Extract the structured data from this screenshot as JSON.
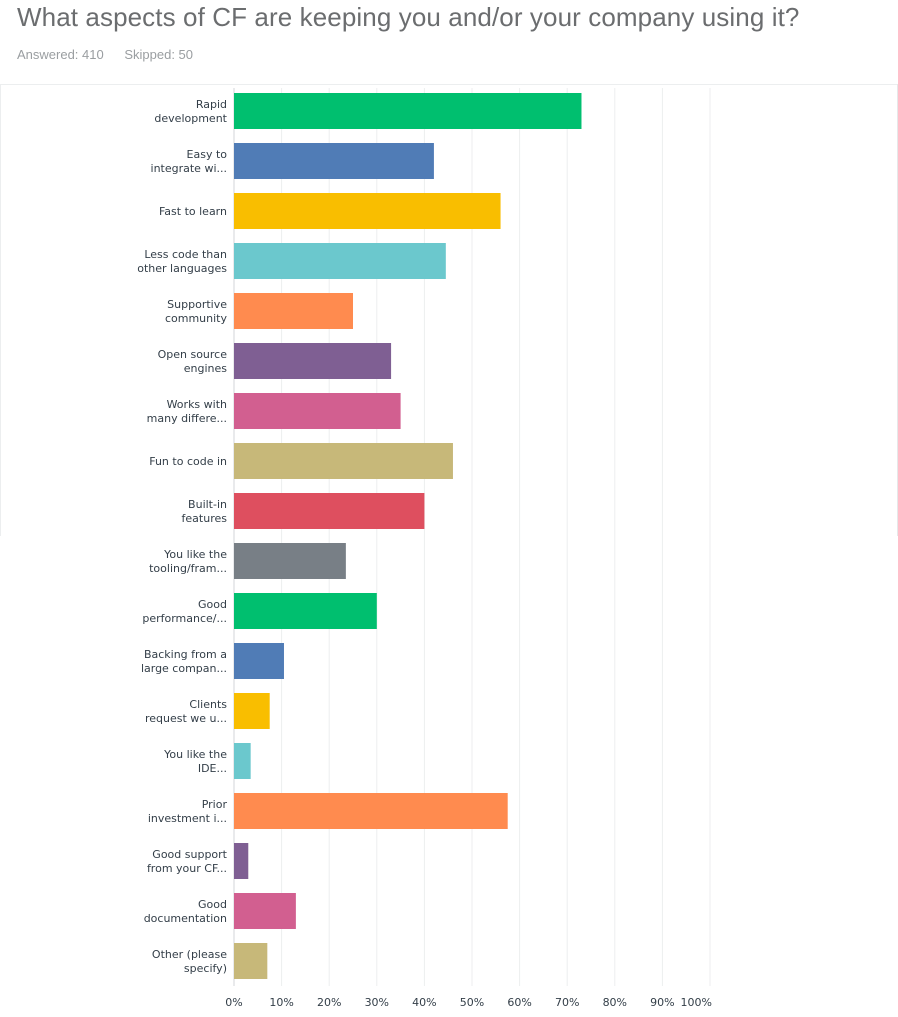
{
  "question": {
    "title": "What aspects of CF are keeping you and/or your company using it?",
    "answered": "Answered: 410",
    "skipped": "Skipped: 50"
  },
  "chart_data": {
    "type": "bar",
    "orientation": "horizontal",
    "title": "What aspects of CF are keeping you and/or your company using it?",
    "xlabel": "",
    "ylabel": "",
    "xlim": [
      0,
      100
    ],
    "grid": true,
    "x_ticks": [
      "0%",
      "10%",
      "20%",
      "30%",
      "40%",
      "50%",
      "60%",
      "70%",
      "80%",
      "90%",
      "100%"
    ],
    "categories": [
      [
        "Rapid",
        "development"
      ],
      [
        "Easy to",
        "integrate wi..."
      ],
      [
        "Fast to learn"
      ],
      [
        "Less code than",
        "other languages"
      ],
      [
        "Supportive",
        "community"
      ],
      [
        "Open source",
        "engines"
      ],
      [
        "Works with",
        "many differe..."
      ],
      [
        "Fun to code in"
      ],
      [
        "Built-in",
        "features"
      ],
      [
        "You like the",
        "tooling/fram..."
      ],
      [
        "Good",
        "performance/..."
      ],
      [
        "Backing from a",
        "large compan..."
      ],
      [
        "Clients",
        "request we u..."
      ],
      [
        "You like the",
        "IDE..."
      ],
      [
        "Prior",
        "investment i..."
      ],
      [
        "Good support",
        "from your CF..."
      ],
      [
        "Good",
        "documentation"
      ],
      [
        "Other (please",
        "specify)"
      ]
    ],
    "values": [
      73,
      42,
      56,
      44.5,
      25,
      33,
      35,
      46,
      40,
      23.5,
      30,
      10.5,
      7.5,
      3.5,
      57.5,
      3,
      13,
      7
    ],
    "colors": [
      "#00bf6f",
      "#507cb6",
      "#f9be00",
      "#6bc8cd",
      "#ff8b4f",
      "#7f5f93",
      "#d25f90",
      "#c7b879",
      "#de4f5f",
      "#787f86",
      "#00bf6f",
      "#507cb6",
      "#f9be00",
      "#6bc8cd",
      "#ff8b4f",
      "#7f5f93",
      "#d25f90",
      "#c7b879"
    ]
  }
}
